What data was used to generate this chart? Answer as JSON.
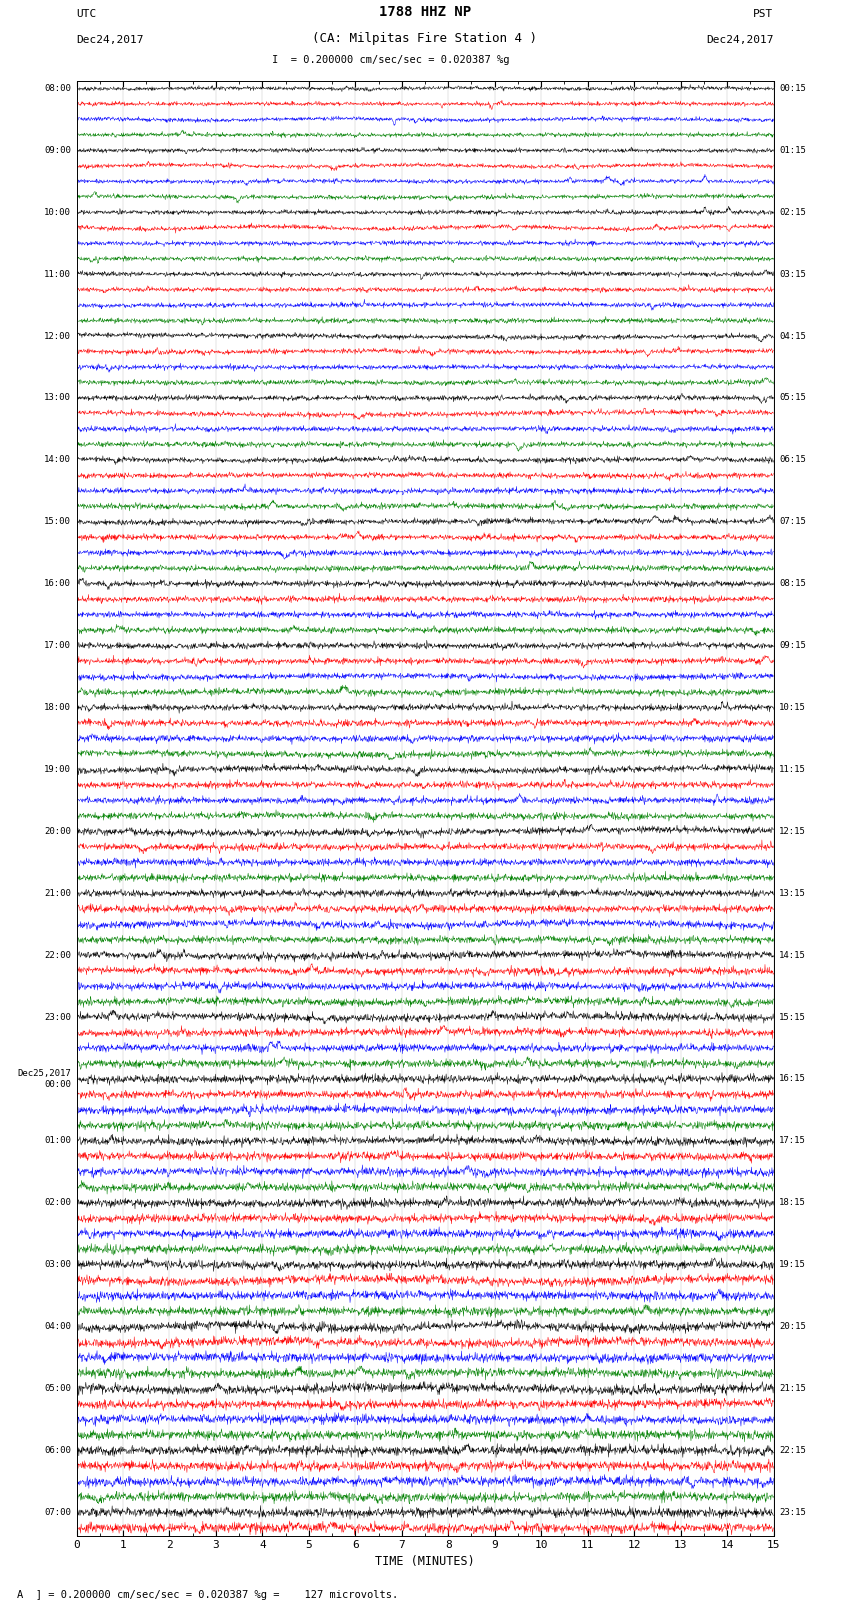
{
  "title_line1": "1788 HHZ NP",
  "title_line2": "(CA: Milpitas Fire Station 4 )",
  "scale_text": "= 0.200000 cm/sec/sec = 0.020387 %g",
  "xlabel": "TIME (MINUTES)",
  "footer_text": "A  ] = 0.200000 cm/sec/sec = 0.020387 %g =    127 microvolts.",
  "colors": [
    "black",
    "red",
    "blue",
    "green"
  ],
  "utc_times": [
    "08:00",
    "",
    "",
    "",
    "09:00",
    "",
    "",
    "",
    "10:00",
    "",
    "",
    "",
    "11:00",
    "",
    "",
    "",
    "12:00",
    "",
    "",
    "",
    "13:00",
    "",
    "",
    "",
    "14:00",
    "",
    "",
    "",
    "15:00",
    "",
    "",
    "",
    "16:00",
    "",
    "",
    "",
    "17:00",
    "",
    "",
    "",
    "18:00",
    "",
    "",
    "",
    "19:00",
    "",
    "",
    "",
    "20:00",
    "",
    "",
    "",
    "21:00",
    "",
    "",
    "",
    "22:00",
    "",
    "",
    "",
    "23:00",
    "",
    "",
    "",
    "Dec25,2017\n00:00",
    "",
    "",
    "",
    "01:00",
    "",
    "",
    "",
    "02:00",
    "",
    "",
    "",
    "03:00",
    "",
    "",
    "",
    "04:00",
    "",
    "",
    "",
    "05:00",
    "",
    "",
    "",
    "06:00",
    "",
    "",
    "",
    "07:00",
    ""
  ],
  "pst_times": [
    "00:15",
    "",
    "",
    "",
    "01:15",
    "",
    "",
    "",
    "02:15",
    "",
    "",
    "",
    "03:15",
    "",
    "",
    "",
    "04:15",
    "",
    "",
    "",
    "05:15",
    "",
    "",
    "",
    "06:15",
    "",
    "",
    "",
    "07:15",
    "",
    "",
    "",
    "08:15",
    "",
    "",
    "",
    "09:15",
    "",
    "",
    "",
    "10:15",
    "",
    "",
    "",
    "11:15",
    "",
    "",
    "",
    "12:15",
    "",
    "",
    "",
    "13:15",
    "",
    "",
    "",
    "14:15",
    "",
    "",
    "",
    "15:15",
    "",
    "",
    "",
    "16:15",
    "",
    "",
    "",
    "17:15",
    "",
    "",
    "",
    "18:15",
    "",
    "",
    "",
    "19:15",
    "",
    "",
    "",
    "20:15",
    "",
    "",
    "",
    "21:15",
    "",
    "",
    "",
    "22:15",
    "",
    "",
    "",
    "23:15",
    ""
  ],
  "n_traces": 94,
  "n_points": 1800,
  "xmin": 0,
  "xmax": 15,
  "background_color": "white",
  "noise_scale": 0.06,
  "spike_scale": 0.35,
  "event_probability": 0.0015,
  "left_header_line1": "UTC",
  "left_header_line2": "Dec24,2017",
  "right_header_line1": "PST",
  "right_header_line2": "Dec24,2017"
}
